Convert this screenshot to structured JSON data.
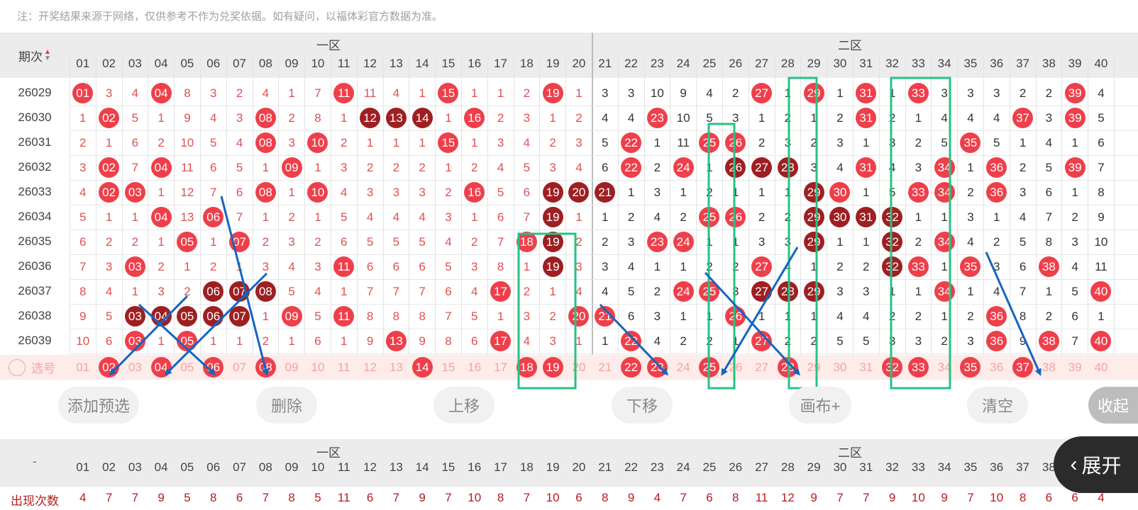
{
  "note": "注：开奖结果来源于网络，仅供参考不作为兑奖依据。如有疑问，以福体彩官方数据为准。",
  "header": {
    "period_label": "期次",
    "zone1": "一区",
    "zone2": "二区"
  },
  "numbers": [
    "01",
    "02",
    "03",
    "04",
    "05",
    "06",
    "07",
    "08",
    "09",
    "10",
    "11",
    "12",
    "13",
    "14",
    "15",
    "16",
    "17",
    "18",
    "19",
    "20",
    "21",
    "22",
    "23",
    "24",
    "25",
    "26",
    "27",
    "28",
    "29",
    "30",
    "31",
    "32",
    "33",
    "34",
    "35",
    "36",
    "37",
    "38",
    "39",
    "40"
  ],
  "rows": [
    {
      "p": "26029",
      "c": [
        {
          "v": "01",
          "b": "r"
        },
        "3",
        "4",
        {
          "v": "04",
          "b": "r"
        },
        "8",
        "3",
        "2",
        "4",
        "1",
        "7",
        {
          "v": "11",
          "b": "r"
        },
        "11",
        "4",
        "1",
        {
          "v": "15",
          "b": "r"
        },
        "1",
        "1",
        "2",
        {
          "v": "19",
          "b": "r"
        },
        "1",
        "3",
        "3",
        "10",
        "9",
        "4",
        "2",
        {
          "v": "27",
          "b": "r"
        },
        "1",
        {
          "v": "29",
          "b": "r"
        },
        "1",
        {
          "v": "31",
          "b": "r"
        },
        "1",
        {
          "v": "33",
          "b": "r"
        },
        "3",
        "3",
        "3",
        "2",
        "2",
        {
          "v": "39",
          "b": "r"
        },
        "4"
      ]
    },
    {
      "p": "26030",
      "c": [
        "1",
        {
          "v": "02",
          "b": "r"
        },
        "5",
        "1",
        "9",
        "4",
        "3",
        {
          "v": "08",
          "b": "r"
        },
        "2",
        "8",
        "1",
        {
          "v": "12",
          "b": "d"
        },
        {
          "v": "13",
          "b": "d"
        },
        {
          "v": "14",
          "b": "d"
        },
        "1",
        {
          "v": "16",
          "b": "r"
        },
        "2",
        "3",
        "1",
        "2",
        "4",
        "4",
        {
          "v": "23",
          "b": "r"
        },
        "10",
        "5",
        "3",
        "1",
        "2",
        "1",
        "2",
        {
          "v": "31",
          "b": "r"
        },
        "2",
        "1",
        "4",
        "4",
        "4",
        {
          "v": "37",
          "b": "r"
        },
        "3",
        {
          "v": "39",
          "b": "r"
        },
        "5"
      ]
    },
    {
      "p": "26031",
      "c": [
        "2",
        "1",
        "6",
        "2",
        "10",
        "5",
        "4",
        {
          "v": "08",
          "b": "r"
        },
        "3",
        {
          "v": "10",
          "b": "r"
        },
        "2",
        "1",
        "1",
        "1",
        {
          "v": "15",
          "b": "r"
        },
        "1",
        "3",
        "4",
        "2",
        "3",
        "5",
        {
          "v": "22",
          "b": "r"
        },
        "1",
        "11",
        {
          "v": "25",
          "b": "r"
        },
        {
          "v": "26",
          "b": "r"
        },
        "2",
        "3",
        "2",
        "3",
        "1",
        "3",
        "2",
        "5",
        {
          "v": "35",
          "b": "r"
        },
        "5",
        "1",
        "4",
        "1",
        "6"
      ]
    },
    {
      "p": "26032",
      "c": [
        "3",
        {
          "v": "02",
          "b": "r"
        },
        "7",
        {
          "v": "04",
          "b": "r"
        },
        "11",
        "6",
        "5",
        "1",
        {
          "v": "09",
          "b": "r"
        },
        "1",
        "3",
        "2",
        "2",
        "2",
        "1",
        "2",
        "4",
        "5",
        "3",
        "4",
        "6",
        {
          "v": "22",
          "b": "r"
        },
        "2",
        {
          "v": "24",
          "b": "r"
        },
        "1",
        {
          "v": "26",
          "b": "d"
        },
        {
          "v": "27",
          "b": "d"
        },
        {
          "v": "28",
          "b": "d"
        },
        "3",
        "4",
        {
          "v": "31",
          "b": "r"
        },
        "4",
        "3",
        {
          "v": "34",
          "b": "r"
        },
        "1",
        {
          "v": "36",
          "b": "r"
        },
        "2",
        "5",
        {
          "v": "39",
          "b": "r"
        },
        "7"
      ]
    },
    {
      "p": "26033",
      "c": [
        "4",
        {
          "v": "02",
          "b": "r"
        },
        {
          "v": "03",
          "b": "r"
        },
        "1",
        "12",
        "7",
        "6",
        {
          "v": "08",
          "b": "r"
        },
        "1",
        {
          "v": "10",
          "b": "r"
        },
        "4",
        "3",
        "3",
        "3",
        "2",
        {
          "v": "16",
          "b": "r"
        },
        "5",
        "6",
        {
          "v": "19",
          "b": "d"
        },
        {
          "v": "20",
          "b": "d"
        },
        {
          "v": "21",
          "b": "d"
        },
        "1",
        "3",
        "1",
        "2",
        "1",
        "1",
        "1",
        {
          "v": "29",
          "b": "d"
        },
        {
          "v": "30",
          "b": "r"
        },
        "1",
        "5",
        {
          "v": "33",
          "b": "r"
        },
        {
          "v": "34",
          "b": "r"
        },
        "2",
        {
          "v": "36",
          "b": "r"
        },
        "3",
        "6",
        "1",
        "8"
      ]
    },
    {
      "p": "26034",
      "c": [
        "5",
        "1",
        "1",
        {
          "v": "04",
          "b": "r"
        },
        "13",
        {
          "v": "06",
          "b": "r"
        },
        "7",
        "1",
        "2",
        "1",
        "5",
        "4",
        "4",
        "4",
        "3",
        "1",
        "6",
        "7",
        {
          "v": "19",
          "b": "d"
        },
        "1",
        "1",
        "2",
        "4",
        "2",
        {
          "v": "25",
          "b": "r"
        },
        {
          "v": "26",
          "b": "r"
        },
        "2",
        "2",
        {
          "v": "29",
          "b": "d"
        },
        {
          "v": "30",
          "b": "d"
        },
        {
          "v": "31",
          "b": "d"
        },
        {
          "v": "32",
          "b": "d"
        },
        "1",
        "1",
        "3",
        "1",
        "4",
        "7",
        "2",
        "9"
      ]
    },
    {
      "p": "26035",
      "c": [
        "6",
        "2",
        "2",
        "1",
        {
          "v": "05",
          "b": "r"
        },
        "1",
        {
          "v": "07",
          "b": "r"
        },
        "2",
        "3",
        "2",
        "6",
        "5",
        "5",
        "5",
        "4",
        "2",
        "7",
        {
          "v": "18",
          "b": "r"
        },
        {
          "v": "19",
          "b": "d"
        },
        "2",
        "2",
        "3",
        {
          "v": "23",
          "b": "r"
        },
        {
          "v": "24",
          "b": "r"
        },
        "1",
        "1",
        "3",
        "3",
        {
          "v": "29",
          "b": "d"
        },
        "1",
        "1",
        {
          "v": "32",
          "b": "d"
        },
        "2",
        {
          "v": "34",
          "b": "r"
        },
        "4",
        "2",
        "5",
        "8",
        "3",
        "10"
      ]
    },
    {
      "p": "26036",
      "c": [
        "7",
        "3",
        {
          "v": "03",
          "b": "r"
        },
        "2",
        "1",
        "2",
        "1",
        "3",
        "4",
        "3",
        {
          "v": "11",
          "b": "r"
        },
        "6",
        "6",
        "6",
        "5",
        "3",
        "8",
        "1",
        {
          "v": "19",
          "b": "d"
        },
        "3",
        "3",
        "4",
        "1",
        "1",
        "2",
        "2",
        {
          "v": "27",
          "b": "r"
        },
        "4",
        "1",
        "2",
        "2",
        {
          "v": "32",
          "b": "d"
        },
        {
          "v": "33",
          "b": "r"
        },
        "1",
        {
          "v": "35",
          "b": "r"
        },
        "3",
        "6",
        {
          "v": "38",
          "b": "r"
        },
        "4",
        "11"
      ]
    },
    {
      "p": "26037",
      "c": [
        "8",
        "4",
        "1",
        "3",
        "2",
        {
          "v": "06",
          "b": "d"
        },
        {
          "v": "07",
          "b": "d"
        },
        {
          "v": "08",
          "b": "d"
        },
        "5",
        "4",
        "1",
        "7",
        "7",
        "7",
        "6",
        "4",
        {
          "v": "17",
          "b": "r"
        },
        "2",
        "1",
        "4",
        "4",
        "5",
        "2",
        {
          "v": "24",
          "b": "r"
        },
        {
          "v": "25",
          "b": "r"
        },
        "3",
        {
          "v": "27",
          "b": "d"
        },
        {
          "v": "28",
          "b": "d"
        },
        {
          "v": "29",
          "b": "d"
        },
        "3",
        "3",
        "1",
        "1",
        {
          "v": "34",
          "b": "r"
        },
        "1",
        "4",
        "7",
        "1",
        "5",
        {
          "v": "40",
          "b": "r"
        }
      ]
    },
    {
      "p": "26038",
      "c": [
        "9",
        "5",
        {
          "v": "03",
          "b": "d"
        },
        {
          "v": "04",
          "b": "d"
        },
        {
          "v": "05",
          "b": "d"
        },
        {
          "v": "06",
          "b": "d"
        },
        {
          "v": "07",
          "b": "d"
        },
        "1",
        {
          "v": "09",
          "b": "r"
        },
        "5",
        {
          "v": "11",
          "b": "r"
        },
        "8",
        "8",
        "8",
        "7",
        "5",
        "1",
        "3",
        "2",
        {
          "v": "20",
          "b": "r"
        },
        {
          "v": "21",
          "b": "r"
        },
        "6",
        "3",
        "1",
        "1",
        {
          "v": "26",
          "b": "r"
        },
        "1",
        "1",
        "1",
        "4",
        "4",
        "2",
        "2",
        "1",
        "2",
        {
          "v": "36",
          "b": "r"
        },
        "8",
        "2",
        "6",
        "1"
      ]
    },
    {
      "p": "26039",
      "c": [
        "10",
        "6",
        {
          "v": "03",
          "b": "r"
        },
        "1",
        {
          "v": "05",
          "b": "r"
        },
        "1",
        "1",
        "2",
        "1",
        "6",
        "1",
        "9",
        {
          "v": "13",
          "b": "r"
        },
        "9",
        "8",
        "6",
        {
          "v": "17",
          "b": "r"
        },
        "4",
        "3",
        "1",
        "1",
        {
          "v": "22",
          "b": "r"
        },
        "4",
        "2",
        "2",
        "1",
        {
          "v": "27",
          "b": "r"
        },
        "2",
        "2",
        "5",
        "5",
        "3",
        "3",
        "2",
        "3",
        {
          "v": "36",
          "b": "r"
        },
        "9",
        {
          "v": "38",
          "b": "r"
        },
        "7",
        {
          "v": "40",
          "b": "r"
        }
      ]
    }
  ],
  "select_row": {
    "label": "选号",
    "selected": [
      "02",
      "04",
      "06",
      "08",
      "14",
      "18",
      "19",
      "22",
      "23",
      "25",
      "28",
      "32",
      "33",
      "35",
      "37"
    ]
  },
  "buttons": {
    "add": "添加预选",
    "delete": "删除",
    "up": "上移",
    "down": "下移",
    "canvas": "画布+",
    "clear": "清空",
    "fold": "收起",
    "expand": "展开"
  },
  "bottom": {
    "dash": "-",
    "count_label": "出现次数",
    "counts": [
      "4",
      "7",
      "7",
      "9",
      "5",
      "8",
      "6",
      "7",
      "8",
      "5",
      "11",
      "6",
      "7",
      "9",
      "7",
      "10",
      "8",
      "7",
      "10",
      "6",
      "8",
      "9",
      "4",
      "7",
      "6",
      "8",
      "11",
      "12",
      "9",
      "7",
      "7",
      "9",
      "10",
      "9",
      "7",
      "10",
      "8",
      "6",
      "6",
      "4"
    ]
  },
  "colors": {
    "ball_red": "#ef3f4a",
    "ball_dark": "#9e1f22",
    "highlight_green": "#27c281",
    "arrow_blue": "#1565c0",
    "select_bg": "#fdecea"
  }
}
